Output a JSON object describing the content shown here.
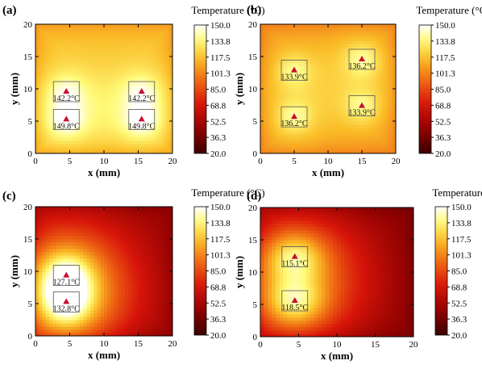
{
  "chart_data": [
    {
      "type": "heatmap",
      "panel_label": "(a)",
      "xlabel": "x (mm)",
      "ylabel": "y (mm)",
      "xlim": [
        0,
        20
      ],
      "ylim": [
        0,
        20
      ],
      "xticks": [
        "0",
        "5",
        "10",
        "15",
        "20"
      ],
      "yticks": [
        "0",
        "5",
        "10",
        "15",
        "20"
      ],
      "colorbar": {
        "title": "Temperature (°C)",
        "ticks": [
          "150.0",
          "133.8",
          "117.5",
          "101.3",
          "85.0",
          "68.8",
          "52.5",
          "36.3",
          "20.0"
        ],
        "min": 20.0,
        "max": 150.0
      },
      "field": {
        "base": 118,
        "k": 0.17,
        "falloff": 30,
        "edge_drop": 12
      },
      "hotspots": [
        {
          "x": 4.5,
          "y": 9.5,
          "temp": 142.2,
          "label": "142.2°C"
        },
        {
          "x": 15.5,
          "y": 9.5,
          "temp": 142.2,
          "label": "142.2°C"
        },
        {
          "x": 4.5,
          "y": 5.2,
          "temp": 149.8,
          "label": "149.8°C"
        },
        {
          "x": 15.5,
          "y": 5.2,
          "temp": 149.8,
          "label": "149.8°C"
        }
      ]
    },
    {
      "type": "heatmap",
      "panel_label": "(b)",
      "xlabel": "x (mm)",
      "ylabel": "y (mm)",
      "xlim": [
        0,
        20
      ],
      "ylim": [
        0,
        20
      ],
      "xticks": [
        "0",
        "5",
        "10",
        "15",
        "20"
      ],
      "yticks": [
        "0",
        "5",
        "10",
        "15",
        "20"
      ],
      "colorbar": {
        "title": "Temperature (°C)",
        "ticks": [
          "150.0",
          "133.8",
          "117.5",
          "101.3",
          "85.0",
          "68.8",
          "52.5",
          "36.3",
          "20.0"
        ],
        "min": 20.0,
        "max": 150.0
      },
      "field": {
        "base": 108,
        "k": 0.18,
        "falloff": 30,
        "edge_drop": 10
      },
      "hotspots": [
        {
          "x": 5,
          "y": 12.8,
          "temp": 133.9,
          "label": "133.9°C"
        },
        {
          "x": 15,
          "y": 14.5,
          "temp": 136.2,
          "label": "136.2°C"
        },
        {
          "x": 5,
          "y": 5.6,
          "temp": 136.2,
          "label": "136.2°C"
        },
        {
          "x": 15,
          "y": 7.3,
          "temp": 133.9,
          "label": "133.9°C"
        }
      ]
    },
    {
      "type": "heatmap",
      "panel_label": "(c)",
      "xlabel": "x (mm)",
      "ylabel": "y (mm)",
      "xlim": [
        0,
        20
      ],
      "ylim": [
        0,
        20
      ],
      "xticks": [
        "0",
        "5",
        "10",
        "15",
        "20"
      ],
      "yticks": [
        "0",
        "5",
        "10",
        "15",
        "20"
      ],
      "colorbar": {
        "title": "Temperature (°C)",
        "ticks": [
          "150.0",
          "133.8",
          "117.5",
          "101.3",
          "85.0",
          "68.8",
          "52.5",
          "36.3",
          "20.0"
        ],
        "min": 20.0,
        "max": 150.0
      },
      "field": {
        "base": 48,
        "k": 0.07,
        "falloff": 100,
        "edge_drop": 8
      },
      "hotspots": [
        {
          "x": 4.5,
          "y": 9.3,
          "temp": 127.1,
          "label": "127.1°C"
        },
        {
          "x": 4.5,
          "y": 5.2,
          "temp": 132.8,
          "label": "132.8°C"
        }
      ]
    },
    {
      "type": "heatmap",
      "panel_label": "(d)",
      "xlabel": "x (mm)",
      "ylabel": "y (mm)",
      "xlim": [
        0,
        20
      ],
      "ylim": [
        0,
        20
      ],
      "xticks": [
        "0",
        "5",
        "10",
        "15",
        "20"
      ],
      "yticks": [
        "0",
        "5",
        "10",
        "15",
        "20"
      ],
      "colorbar": {
        "title": "Temperature (°C)",
        "ticks": [
          "150.0",
          "133.8",
          "117.5",
          "101.3",
          "85.0",
          "68.8",
          "52.5",
          "36.3",
          "20.0"
        ],
        "min": 20.0,
        "max": 150.0
      },
      "field": {
        "base": 42,
        "k": 0.07,
        "falloff": 100,
        "edge_drop": 8
      },
      "hotspots": [
        {
          "x": 4.5,
          "y": 12.3,
          "temp": 115.1,
          "label": "115.1°C"
        },
        {
          "x": 4.5,
          "y": 5.5,
          "temp": 118.5,
          "label": "118.5°C"
        }
      ]
    }
  ]
}
